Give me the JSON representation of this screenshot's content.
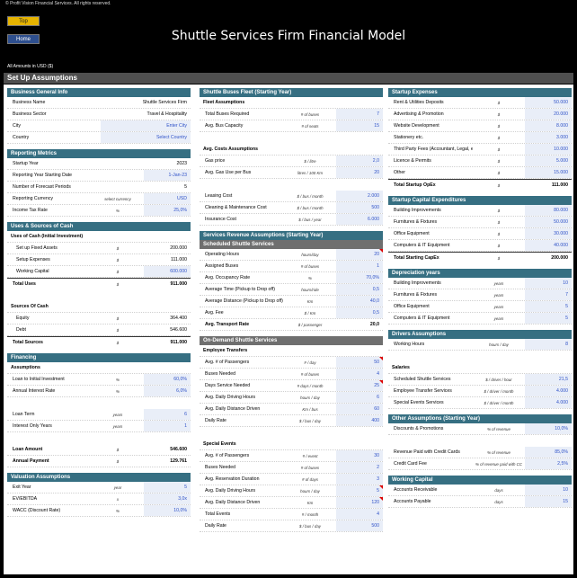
{
  "copyright": "© Profit Vision Financial Services. All rights reserved.",
  "nav": {
    "top": "Top",
    "home": "Home"
  },
  "title": "Shuttle Services Firm Financial Model",
  "amounts_note": "All Amounts in USD ($)",
  "band": "Set Up Assumptions",
  "business": {
    "header": "Business General Info",
    "rows": [
      {
        "label": "Business Name",
        "unit": "",
        "value": "Shuttle Services Firm"
      },
      {
        "label": "Business Sector",
        "unit": "",
        "value": "Travel & Hospitality"
      },
      {
        "label": "City",
        "unit": "",
        "value": "Enter City"
      },
      {
        "label": "Country",
        "unit": "",
        "value": "Select Country"
      }
    ]
  },
  "reporting": {
    "header": "Reporting Metrics",
    "rows": [
      {
        "label": "Startup Year",
        "unit": "",
        "value": "2023"
      },
      {
        "label": "Reporting Year Starting Date",
        "unit": "",
        "value": "1-Jan-23"
      },
      {
        "label": "Number of Forecast Periods",
        "unit": "",
        "value": "5"
      },
      {
        "label": "Reporting Currency",
        "unit": "select currency",
        "value": "USD"
      },
      {
        "label": "Income Tax Rate",
        "unit": "%",
        "value": "25,0%"
      }
    ]
  },
  "uses": {
    "header": "Uses & Sources of Cash",
    "uses_label": "Uses of Cash (Initial Investment)",
    "uses_rows": [
      {
        "label": "Set up Fixed Assets",
        "unit": "$",
        "value": "200.000"
      },
      {
        "label": "Setup Expenses",
        "unit": "$",
        "value": "111.000"
      },
      {
        "label": "Working Capital",
        "unit": "$",
        "value": "600.000"
      }
    ],
    "total_uses": {
      "label": "Total Uses",
      "unit": "$",
      "value": "911.000"
    },
    "sources_label": "Sources Of Cash",
    "sources_rows": [
      {
        "label": "Equity",
        "unit": "$",
        "value": "364.400"
      },
      {
        "label": "Debt",
        "unit": "$",
        "value": "546.600"
      }
    ],
    "total_sources": {
      "label": "Total Sources",
      "unit": "$",
      "value": "911.000"
    }
  },
  "financing": {
    "header": "Financing",
    "sub": "Assumptions",
    "rows1": [
      {
        "label": "Loan to Initial Investment",
        "unit": "%",
        "value": "60,0%"
      },
      {
        "label": "Annual Interest Rate",
        "unit": "%",
        "value": "6,0%"
      }
    ],
    "rows2": [
      {
        "label": "Loan Term",
        "unit": "years",
        "value": "6"
      },
      {
        "label": "Interest Only Years",
        "unit": "years",
        "value": "1"
      }
    ],
    "rows3": [
      {
        "label": "Loan Amount",
        "unit": "$",
        "value": "546.600"
      },
      {
        "label": "Annual Payment",
        "unit": "$",
        "value": "129.761"
      }
    ]
  },
  "valuation": {
    "header": "Valuation Assumptions",
    "rows": [
      {
        "label": "Exit Year",
        "unit": "year",
        "value": "5"
      },
      {
        "label": "EV/EBITDA",
        "unit": "x",
        "value": "3,0x"
      },
      {
        "label": "WACC (Discount Rate)",
        "unit": "%",
        "value": "10,0%"
      }
    ]
  },
  "fleet": {
    "header": "Shuttle Buses Fleet (Starting Year)",
    "sub1": "Fleet Assumptions",
    "rows1": [
      {
        "label": "Total Buses Required",
        "unit": "# of buses",
        "value": "7"
      },
      {
        "label": "Avg. Bus Capacity",
        "unit": "# of seats",
        "value": "15"
      }
    ],
    "sub2": "Avg. Costs Assumptions",
    "rows2": [
      {
        "label": "Gas price",
        "unit": "$ / litre",
        "value": "2,0"
      },
      {
        "label": "Avg. Gas Use per Bus",
        "unit": "litres / 100 Km",
        "value": "20"
      }
    ],
    "rows3": [
      {
        "label": "Leasing Cost",
        "unit": "$ / bus / month",
        "value": "2.000"
      },
      {
        "label": "Cleaning & Maintenance Cost",
        "unit": "$ / bus / month",
        "value": "500"
      },
      {
        "label": "Insurance Cost",
        "unit": "$ / bus / year",
        "value": "6.000"
      }
    ]
  },
  "revenue": {
    "header": "Services Revenue Assumptions (Starting Year)",
    "sched_header": "Scheduled Shuttle Services",
    "sched_rows": [
      {
        "label": "Operating Hours",
        "unit": "hours/day",
        "value": "20"
      },
      {
        "label": "Assigned Buses",
        "unit": "# of buses",
        "value": "1"
      },
      {
        "label": "Avg. Occupancy Rate",
        "unit": "%",
        "value": "70,0%"
      },
      {
        "label": "Average Time (Pickup to Drop off)",
        "unit": "hours/ride",
        "value": "0,5"
      },
      {
        "label": "Average Distance (Pickup to Drop off)",
        "unit": "Km",
        "value": "40,0"
      },
      {
        "label": "Avg. Fee",
        "unit": "$ / Km",
        "value": "0,5"
      }
    ],
    "sched_total": {
      "label": "Avg. Transport Rate",
      "unit": "$ / passenger",
      "value": "20,0"
    },
    "ondemand_header": "On-Demand Shuttle Services",
    "emp_sub": "Employee Transfers",
    "emp_rows": [
      {
        "label": "Avg. # of Passengers",
        "unit": "# / day",
        "value": "50"
      },
      {
        "label": "Buses Needed",
        "unit": "# of buses",
        "value": "4"
      },
      {
        "label": "Days Service Needed",
        "unit": "# days / month",
        "value": "25"
      },
      {
        "label": "Avg. Daily Driving Hours",
        "unit": "hours / day",
        "value": "6"
      },
      {
        "label": "Avg. Daily Distance Driven",
        "unit": "Km / bus",
        "value": "60"
      },
      {
        "label": "Daily Rate",
        "unit": "$ / bus / day",
        "value": "400"
      }
    ],
    "special_sub": "Special Events",
    "special_rows": [
      {
        "label": "Avg. # of Passengers",
        "unit": "# / event",
        "value": "30"
      },
      {
        "label": "Buses Needed",
        "unit": "# of buses",
        "value": "2"
      },
      {
        "label": "Avg. Reservation Duration",
        "unit": "# of days",
        "value": "3"
      },
      {
        "label": "Avg. Daily Driving Hours",
        "unit": "hours / day",
        "value": "5"
      },
      {
        "label": "Avg. Daily Distance Driven",
        "unit": "Km",
        "value": "120"
      },
      {
        "label": "Total Events",
        "unit": "# / month",
        "value": "4"
      },
      {
        "label": "Daily Rate",
        "unit": "$ / bus / day",
        "value": "500"
      }
    ]
  },
  "startup": {
    "header": "Startup Expenses",
    "rows": [
      {
        "label": "Rent & Utilities Deposits",
        "unit": "$",
        "value": "50.000"
      },
      {
        "label": "Advertising & Promotion",
        "unit": "$",
        "value": "20.000"
      },
      {
        "label": "Website Development",
        "unit": "$",
        "value": "8.000"
      },
      {
        "label": "Stationery etc.",
        "unit": "$",
        "value": "3.000"
      },
      {
        "label": "Third Party Fees (Accountant, Legal, etc.)",
        "unit": "$",
        "value": "10.000"
      },
      {
        "label": "Licence & Permits",
        "unit": "$",
        "value": "5.000"
      },
      {
        "label": "Other",
        "unit": "$",
        "value": "15.000"
      }
    ],
    "total": {
      "label": "Total Startup OpEx",
      "unit": "$",
      "value": "111.000"
    }
  },
  "capex": {
    "header": "Startup Capital Expenditures",
    "rows": [
      {
        "label": "Building Improvements",
        "unit": "$",
        "value": "80.000"
      },
      {
        "label": "Furnitures & Fixtures",
        "unit": "$",
        "value": "50.000"
      },
      {
        "label": "Office Equipment",
        "unit": "$",
        "value": "30.000"
      },
      {
        "label": "Computers & IT Equipment",
        "unit": "$",
        "value": "40.000"
      }
    ],
    "total": {
      "label": "Total Starting CapEx",
      "unit": "$",
      "value": "200.000"
    }
  },
  "depreciation": {
    "header": "Depreciation years",
    "rows": [
      {
        "label": "Building Improvements",
        "unit": "years",
        "value": "10"
      },
      {
        "label": "Furnitures & Fixtures",
        "unit": "years",
        "value": "7"
      },
      {
        "label": "Office Equipment",
        "unit": "years",
        "value": "5"
      },
      {
        "label": "Computers & IT Equipment",
        "unit": "years",
        "value": "5"
      }
    ]
  },
  "drivers": {
    "header": "Drivers Assumptions",
    "rows1": [
      {
        "label": "Working Hours",
        "unit": "hours / day",
        "value": "8"
      }
    ],
    "sub": "Salaries",
    "rows2": [
      {
        "label": "Scheduled Shuttle Services",
        "unit": "$ / driver / hour",
        "value": "21,5"
      },
      {
        "label": "Employee Transfer Services",
        "unit": "$ / driver / month",
        "value": "4.000"
      },
      {
        "label": "Special Events Services",
        "unit": "$ / driver / month",
        "value": "4.000"
      }
    ]
  },
  "other": {
    "header": "Other Assumptions (Starting Year)",
    "rows1": [
      {
        "label": "Discounts & Promotions",
        "unit": "% of revenue",
        "value": "10,0%"
      }
    ],
    "rows2": [
      {
        "label": "Revenue Paid with Credit Cards",
        "unit": "% of revenue",
        "value": "85,0%"
      },
      {
        "label": "Credit Card Fee",
        "unit": "% of revenue paid with CC",
        "value": "2,5%"
      }
    ]
  },
  "wc": {
    "header": "Working Capital",
    "rows": [
      {
        "label": "Accounts Receivable",
        "unit": "days",
        "value": "10"
      },
      {
        "label": "Accounts Payable",
        "unit": "days",
        "value": "15"
      }
    ]
  }
}
